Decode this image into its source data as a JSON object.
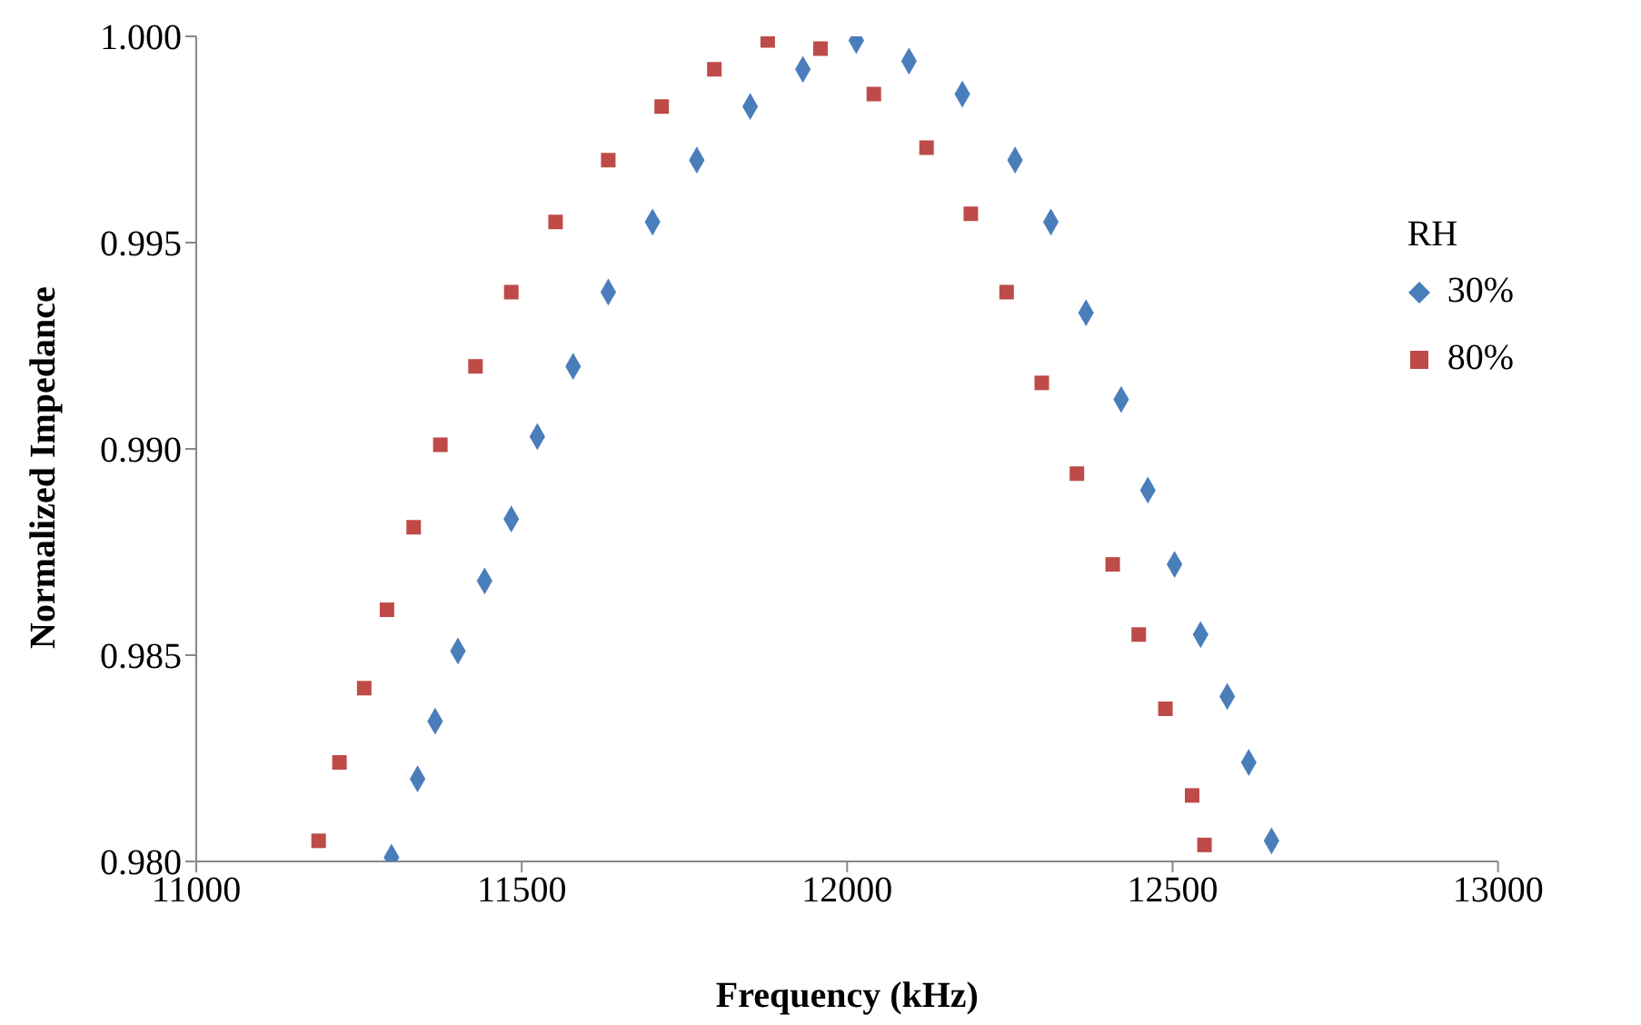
{
  "chart_data": {
    "type": "scatter",
    "xlabel": "Frequency (kHz)",
    "ylabel": "Normalized Impedance",
    "legend_title": "RH",
    "legend": "right",
    "grid": false,
    "xlim": [
      11000,
      13000
    ],
    "xticks": [
      11000,
      11500,
      12000,
      12500,
      13000
    ],
    "ylim": [
      0.98,
      1.0
    ],
    "yticks": [
      {
        "value": 0.98,
        "label": "0.980"
      },
      {
        "value": 0.985,
        "label": "0.985"
      },
      {
        "value": 0.99,
        "label": "0.990"
      },
      {
        "value": 0.995,
        "label": "0.995"
      },
      {
        "value": 1.0,
        "label": "1.000"
      }
    ],
    "series": [
      {
        "name": "30%",
        "color": "#4a7ebb",
        "marker": "diamond",
        "x": [
          11300,
          11340,
          11367,
          11402,
          11443,
          11484,
          11524,
          11579,
          11633,
          11701,
          11769,
          11851,
          11932,
          12014,
          12095,
          12177,
          12258,
          12313,
          12367,
          12421,
          12462,
          12503,
          12543,
          12584,
          12617,
          12652
        ],
        "values": [
          0.9801,
          0.982,
          0.9834,
          0.9851,
          0.9868,
          0.9883,
          0.9903,
          0.992,
          0.9938,
          0.9955,
          0.997,
          0.9983,
          0.9992,
          0.9999,
          0.9994,
          0.9986,
          0.997,
          0.9955,
          0.9933,
          0.9912,
          0.989,
          0.9872,
          0.9855,
          0.984,
          0.9824,
          0.9805
        ]
      },
      {
        "name": "80%",
        "color": "#be4b48",
        "marker": "square",
        "x": [
          11188,
          11220,
          11258,
          11293,
          11334,
          11375,
          11429,
          11484,
          11552,
          11633,
          11715,
          11796,
          11878,
          11959,
          12041,
          12122,
          12190,
          12245,
          12299,
          12353,
          12408,
          12448,
          12489,
          12530,
          12549
        ],
        "values": [
          0.9805,
          0.9824,
          0.9842,
          0.9861,
          0.9881,
          0.9901,
          0.992,
          0.9938,
          0.9955,
          0.997,
          0.9983,
          0.9992,
          0.9999,
          0.9997,
          0.9986,
          0.9973,
          0.9957,
          0.9938,
          0.9916,
          0.9894,
          0.9872,
          0.9855,
          0.9837,
          0.9816,
          0.9804
        ]
      }
    ]
  }
}
